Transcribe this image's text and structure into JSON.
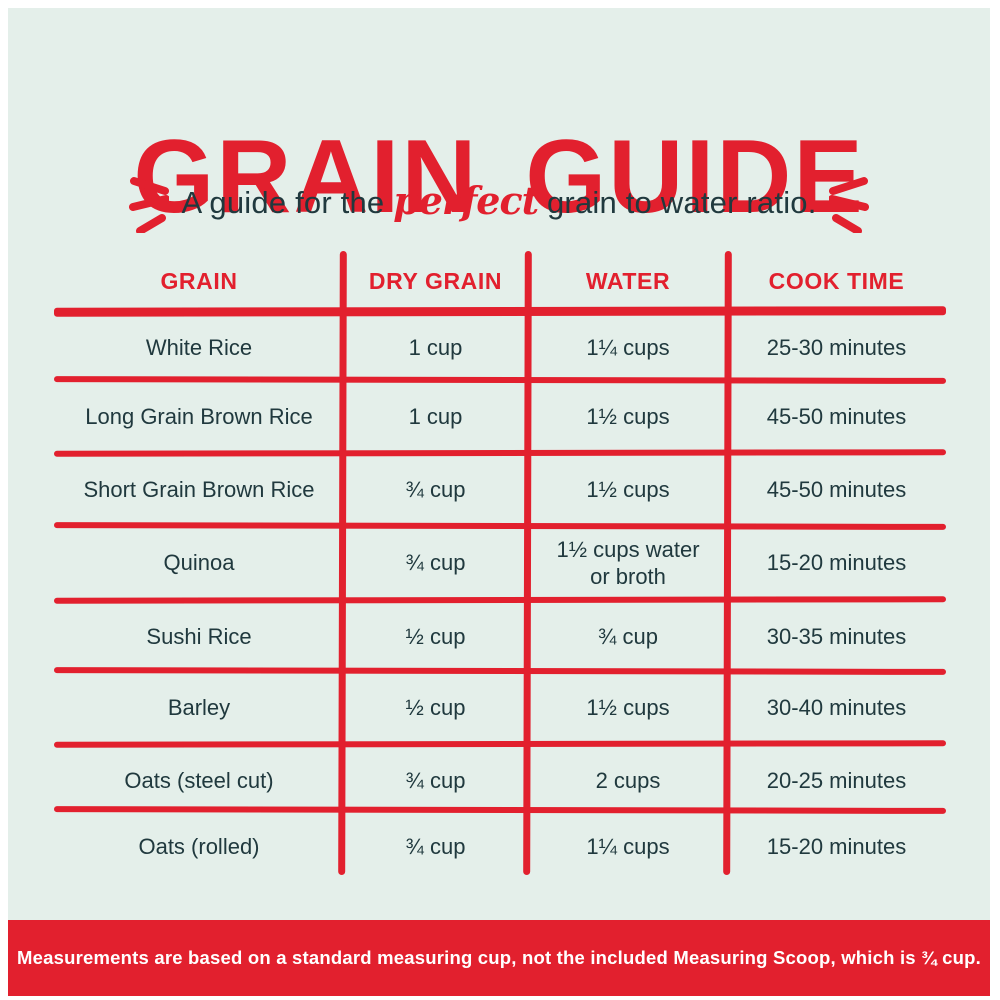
{
  "title": "GRAIN GUIDE",
  "subtitle": {
    "prefix": "A guide for the ",
    "highlight": "perfect",
    "suffix": " grain to water ratio."
  },
  "colors": {
    "red": "#e2202e",
    "mint": "#e4efea",
    "dark": "#20393e",
    "footer_text": "#ffffff"
  },
  "icons": {
    "left_emphasis": "emphasis-dashes-left-icon",
    "right_emphasis": "emphasis-dashes-right-icon"
  },
  "footer_note": "Measurements are based on a standard measuring cup, not the included Measuring Scoop, which is ¾ cup.",
  "chart_data": {
    "type": "table",
    "title": "GRAIN GUIDE",
    "subtitle": "A guide for the perfect grain to water ratio.",
    "columns": [
      "GRAIN",
      "DRY GRAIN",
      "WATER",
      "COOK TIME"
    ],
    "rows": [
      [
        "White Rice",
        "1 cup",
        "1¼ cups",
        "25-30 minutes"
      ],
      [
        "Long Grain Brown Rice",
        "1 cup",
        "1½ cups",
        "45-50 minutes"
      ],
      [
        "Short Grain Brown Rice",
        "¾ cup",
        "1½ cups",
        "45-50 minutes"
      ],
      [
        "Quinoa",
        "¾ cup",
        "1½ cups water or broth",
        "15-20 minutes"
      ],
      [
        "Sushi Rice",
        "½ cup",
        "¾ cup",
        "30-35 minutes"
      ],
      [
        "Barley",
        "½ cup",
        "1½ cups",
        "30-40 minutes"
      ],
      [
        "Oats (steel cut)",
        "¾ cup",
        "2 cups",
        "20-25 minutes"
      ],
      [
        "Oats (rolled)",
        "¾ cup",
        "1¼ cups",
        "15-20 minutes"
      ]
    ],
    "note": "Measurements are based on a standard measuring cup, not the included Measuring Scoop, which is ¾ cup.",
    "layout_hints": {
      "grid": "hand-drawn red lines",
      "header_color": "red",
      "no_outer_border": true
    }
  }
}
